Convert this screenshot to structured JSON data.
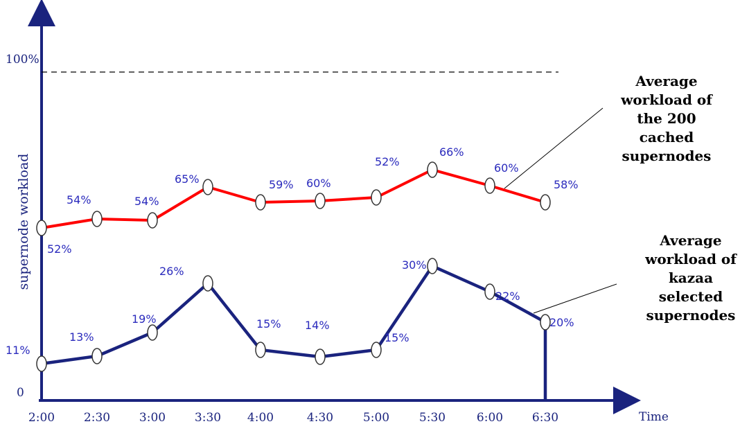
{
  "chart_data": {
    "type": "line",
    "title": "",
    "xlabel": "Time",
    "ylabel": "supernode workload",
    "categories": [
      "2:00",
      "2:30",
      "3:00",
      "3:30",
      "4:00",
      "4:30",
      "5:00",
      "5:30",
      "6:00",
      "6:30"
    ],
    "ytick_labels": [
      "0",
      "100%"
    ],
    "yrange": [
      0,
      100
    ],
    "reference_line": {
      "value": 100,
      "style": "dashed"
    },
    "grid": false,
    "series": [
      {
        "name": "Average workload of the 200 cached supernodes",
        "color": "#ff0000",
        "values": [
          52,
          54,
          54,
          65,
          59,
          60,
          52,
          66,
          60,
          58
        ],
        "labels": [
          "52%",
          "54%",
          "54%",
          "65%",
          "59%",
          "60%",
          "52%",
          "66%",
          "60%",
          "58%"
        ]
      },
      {
        "name": "Average workload of kazaa selected supernodes",
        "color": "#1a237e",
        "values": [
          11,
          13,
          19,
          26,
          15,
          14,
          15,
          30,
          22,
          20
        ],
        "labels": [
          "11%",
          "13%",
          "19%",
          "26%",
          "15%",
          "14%",
          "15%",
          "30%",
          "22%",
          "20%"
        ]
      }
    ],
    "annotations": [
      {
        "series": 0,
        "lines": [
          "Average",
          "workload of",
          "the 200",
          "cached",
          "supernodes"
        ]
      },
      {
        "series": 1,
        "lines": [
          "Average",
          "workload of",
          "kazaa",
          "selected",
          "supernodes"
        ]
      }
    ]
  }
}
